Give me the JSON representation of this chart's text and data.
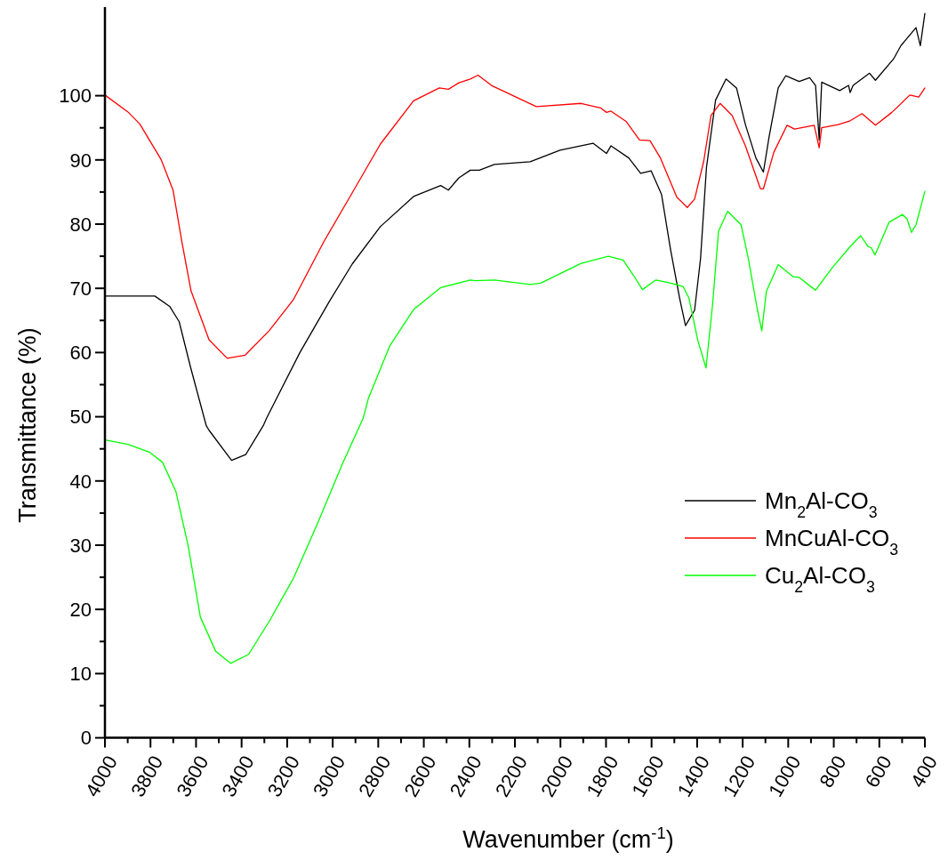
{
  "chart_data": {
    "type": "line",
    "xlabel": "Wavenumber (cm$^{-1}$)",
    "ylabel": "Transmittance (%)",
    "xlim": [
      4000,
      400
    ],
    "ylim": [
      0,
      114
    ],
    "xticks": [
      4000,
      {
        "value": 3900,
        "label": null
      },
      3800,
      {
        "value": 3700,
        "label": null
      },
      3600,
      {
        "value": 3500,
        "label": null
      },
      3400,
      {
        "value": 3300,
        "label": null
      },
      3200,
      {
        "value": 3100,
        "label": null
      },
      3000,
      {
        "value": 2900,
        "label": null
      },
      2800,
      {
        "value": 2700,
        "label": null
      },
      2600,
      {
        "value": 2500,
        "label": null
      },
      2400,
      {
        "value": 2300,
        "label": null
      },
      2200,
      {
        "value": 2100,
        "label": null
      },
      2000,
      {
        "value": 1900,
        "label": null
      },
      1800,
      {
        "value": 1700,
        "label": null
      },
      1600,
      {
        "value": 1500,
        "label": null
      },
      1400,
      {
        "value": 1300,
        "label": null
      },
      1200,
      {
        "value": 1100,
        "label": null
      },
      1000,
      {
        "value": 900,
        "label": null
      },
      800,
      {
        "value": 700,
        "label": null
      },
      600,
      {
        "value": 500,
        "label": null
      },
      400
    ],
    "yticks": [
      0,
      {
        "value": 5,
        "label": null
      },
      10,
      {
        "value": 15,
        "label": null
      },
      20,
      {
        "value": 25,
        "label": null
      },
      30,
      {
        "value": 35,
        "label": null
      },
      40,
      {
        "value": 45,
        "label": null
      },
      50,
      {
        "value": 55,
        "label": null
      },
      60,
      {
        "value": 65,
        "label": null
      },
      70,
      {
        "value": 75,
        "label": null
      },
      80,
      {
        "value": 85,
        "label": null
      },
      90,
      {
        "value": 95,
        "label": null
      },
      100
    ],
    "grid": false,
    "legend": "right",
    "marker": "none",
    "line_style": "solid",
    "series": [
      {
        "name": "Mn$_{2}$Al-CO$_{3}$",
        "color": "#000000",
        "x": [
          4000,
          3781,
          3716,
          3674,
          3624,
          3555,
          3543,
          3444,
          3382,
          3305,
          3290,
          3144,
          3014,
          2914,
          2791,
          2645,
          2526,
          2492,
          2446,
          2396,
          2356,
          2290,
          2133,
          2002,
          1857,
          1798,
          1778,
          1700,
          1648,
          1602,
          1556,
          1517,
          1477,
          1451,
          1411,
          1385,
          1359,
          1319,
          1273,
          1227,
          1188,
          1142,
          1109,
          1084,
          1044,
          1011,
          952,
          906,
          880,
          864,
          853,
          774,
          735,
          728,
          715,
          643,
          617,
          538,
          505,
          439,
          420,
          400
        ],
        "values": [
          68.8,
          68.8,
          67.2,
          64.8,
          57.7,
          48.6,
          47.9,
          43.2,
          44.1,
          48.6,
          49.8,
          60.0,
          68.0,
          73.8,
          79.6,
          84.3,
          86.0,
          85.3,
          87.2,
          88.4,
          88.4,
          89.3,
          89.7,
          91.5,
          92.6,
          91.0,
          92.2,
          90.3,
          87.9,
          88.3,
          84.6,
          76.1,
          68.5,
          64.2,
          66.6,
          74.6,
          88.8,
          99.3,
          102.6,
          101.2,
          95.5,
          90.3,
          88.1,
          93.6,
          101.2,
          103.1,
          102.2,
          102.8,
          101.6,
          93.1,
          102.1,
          100.8,
          101.6,
          100.5,
          101.6,
          103.5,
          102.4,
          105.7,
          107.8,
          110.6,
          107.8,
          112.8
        ]
      },
      {
        "name": "MnCuAl-CO$_{3}$",
        "color": "#ff0000",
        "x": [
          4000,
          3900,
          3847,
          3754,
          3701,
          3662,
          3622,
          3543,
          3463,
          3384,
          3279,
          3173,
          3040,
          2922,
          2790,
          2645,
          2532,
          2492,
          2446,
          2396,
          2362,
          2303,
          2106,
          1909,
          1824,
          1798,
          1778,
          1712,
          1653,
          1607,
          1561,
          1489,
          1443,
          1411,
          1371,
          1339,
          1299,
          1246,
          1188,
          1122,
          1109,
          1063,
          1005,
          972,
          886,
          864,
          853,
          781,
          728,
          676,
          617,
          545,
          466,
          427,
          400
        ],
        "values": [
          100.1,
          97.5,
          95.6,
          90.1,
          85.3,
          77.2,
          69.6,
          62.0,
          59.1,
          59.6,
          63.4,
          68.2,
          77.2,
          84.4,
          92.5,
          99.2,
          101.2,
          101.0,
          102.0,
          102.6,
          103.2,
          101.6,
          98.3,
          98.8,
          98.1,
          97.4,
          97.6,
          96.0,
          93.1,
          93.0,
          90.3,
          84.2,
          82.6,
          83.9,
          89.8,
          96.9,
          98.8,
          96.9,
          92.2,
          85.5,
          85.5,
          91.2,
          95.4,
          94.8,
          95.4,
          91.9,
          95.0,
          95.5,
          96.1,
          97.2,
          95.4,
          97.4,
          100.1,
          99.8,
          101.2
        ]
      },
      {
        "name": "Cu$_{2}$Al-CO$_{3}$",
        "color": "#00ff00",
        "x": [
          4000,
          3899,
          3805,
          3747,
          3688,
          3634,
          3581,
          3514,
          3448,
          3369,
          3276,
          3170,
          3064,
          2958,
          2866,
          2843,
          2750,
          2645,
          2526,
          2396,
          2375,
          2290,
          2133,
          2087,
          1909,
          1790,
          1725,
          1679,
          1640,
          1581,
          1528,
          1462,
          1436,
          1397,
          1361,
          1332,
          1306,
          1266,
          1207,
          1175,
          1135,
          1116,
          1096,
          1044,
          978,
          952,
          880,
          807,
          728,
          682,
          649,
          635,
          619,
          603,
          557,
          498,
          478,
          459,
          439,
          400
        ],
        "values": [
          46.4,
          45.7,
          44.5,
          42.9,
          38.3,
          29.8,
          18.8,
          13.5,
          11.6,
          13.0,
          18.3,
          25.0,
          33.6,
          42.6,
          49.8,
          52.9,
          61.0,
          66.7,
          70.1,
          71.3,
          71.2,
          71.3,
          70.6,
          70.8,
          73.9,
          75.0,
          74.4,
          72.0,
          69.8,
          71.3,
          70.9,
          70.3,
          68.5,
          61.9,
          57.6,
          67.5,
          78.9,
          82.0,
          79.9,
          74.6,
          66.6,
          63.4,
          69.5,
          73.7,
          71.8,
          71.7,
          69.7,
          73.2,
          76.5,
          78.2,
          76.5,
          76.3,
          75.2,
          76.5,
          80.3,
          81.5,
          80.8,
          78.7,
          79.9,
          85.1
        ]
      }
    ]
  }
}
